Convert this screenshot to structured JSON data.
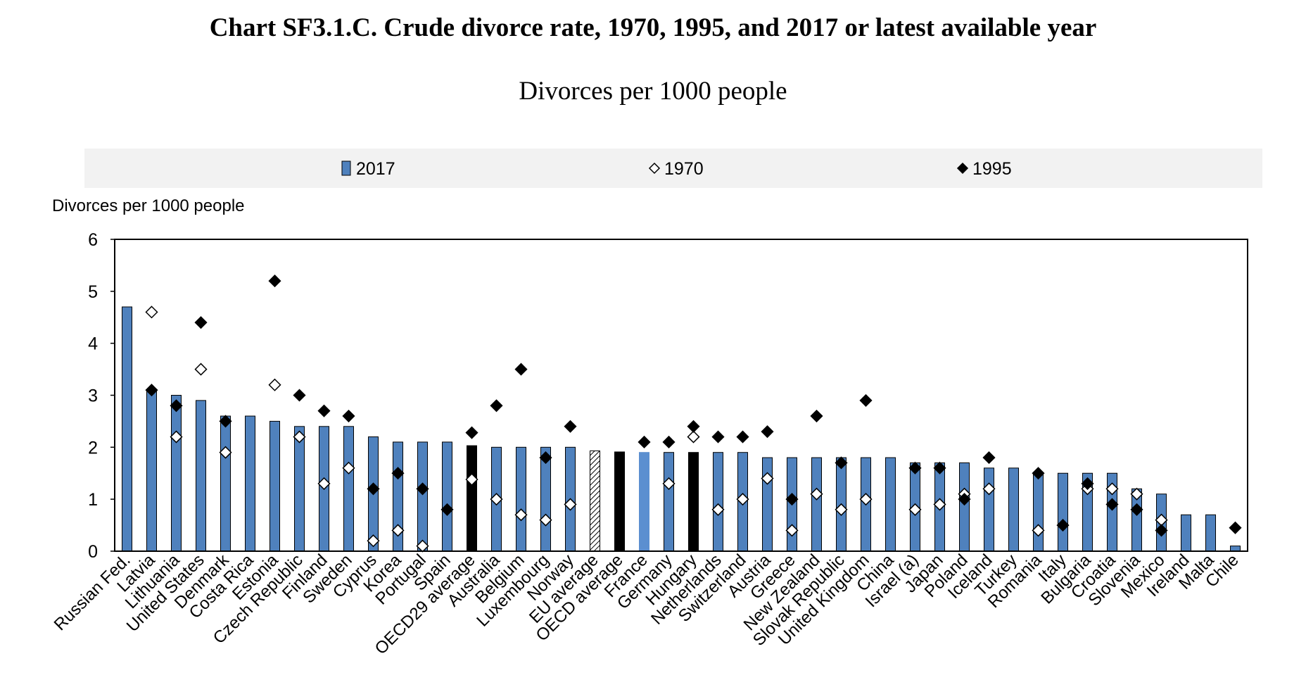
{
  "title": "Chart SF3.1.C. Crude divorce rate, 1970, 1995, and 2017 or latest available year",
  "subtitle": "Divorces per 1000 people",
  "chart_data": {
    "type": "bar",
    "title": "Chart SF3.1.C. Crude divorce rate, 1970, 1995, and 2017 or latest available year",
    "subtitle": "Divorces per 1000 people",
    "ylabel": "Divorces per 1000 people",
    "xlabel": "",
    "ylim": [
      0,
      6
    ],
    "yticks": [
      0,
      1,
      2,
      3,
      4,
      5,
      6
    ],
    "grid": false,
    "legend_position": "top",
    "legend": [
      {
        "name": "2017",
        "marker": "bar"
      },
      {
        "name": "1970",
        "marker": "open-diamond"
      },
      {
        "name": "1995",
        "marker": "filled-diamond"
      }
    ],
    "colors": {
      "bar": "#4f81bd",
      "bar_stroke": "#000000",
      "average_bar": "#000000",
      "highlight_bar": "#5b8fd0",
      "legend_bg": "#f2f2f2"
    },
    "categories": [
      "Russian Fed.",
      "Latvia",
      "Lithuania",
      "United States",
      "Denmark",
      "Costa Rica",
      "Estonia",
      "Czech Republic",
      "Finland",
      "Sweden",
      "Cyprus",
      "Korea",
      "Portugal",
      "Spain",
      "OECD29 average",
      "Australia",
      "Belgium",
      "Luxembourg",
      "Norway",
      "EU average",
      "OECD average",
      "France",
      "Germany",
      "Hungary",
      "Netherlands",
      "Switzerland",
      "Austria",
      "Greece",
      "New Zealand",
      "Slovak Republic",
      "United Kingdom",
      "China",
      "Israel (a)",
      "Japan",
      "Poland",
      "Iceland",
      "Turkey",
      "Romania",
      "Italy",
      "Bulgaria",
      "Croatia",
      "Slovenia",
      "Mexico",
      "Ireland",
      "Malta",
      "Chile"
    ],
    "bar_style": [
      "normal",
      "normal",
      "normal",
      "normal",
      "normal",
      "normal",
      "normal",
      "normal",
      "normal",
      "normal",
      "normal",
      "normal",
      "normal",
      "normal",
      "black",
      "normal",
      "normal",
      "normal",
      "normal",
      "hatched",
      "black",
      "highlight",
      "normal",
      "black",
      "normal",
      "normal",
      "normal",
      "normal",
      "normal",
      "normal",
      "normal",
      "normal",
      "normal",
      "normal",
      "normal",
      "normal",
      "normal",
      "normal",
      "normal",
      "normal",
      "normal",
      "normal",
      "normal",
      "normal",
      "normal",
      "normal"
    ],
    "series": [
      {
        "name": "2017",
        "values": [
          4.7,
          3.1,
          3.0,
          2.9,
          2.6,
          2.6,
          2.5,
          2.4,
          2.4,
          2.4,
          2.2,
          2.1,
          2.1,
          2.1,
          2.03,
          2.0,
          2.0,
          2.0,
          2.0,
          1.93,
          1.91,
          1.9,
          1.9,
          1.9,
          1.9,
          1.9,
          1.8,
          1.8,
          1.8,
          1.8,
          1.8,
          1.8,
          1.7,
          1.7,
          1.7,
          1.6,
          1.6,
          1.5,
          1.5,
          1.5,
          1.5,
          1.2,
          1.1,
          0.7,
          0.7,
          0.1
        ]
      },
      {
        "name": "1970",
        "values": [
          null,
          4.6,
          2.2,
          3.5,
          1.9,
          null,
          3.2,
          2.2,
          1.3,
          1.6,
          0.2,
          0.4,
          0.1,
          null,
          1.38,
          1.0,
          0.7,
          0.6,
          0.9,
          null,
          null,
          null,
          1.3,
          2.2,
          0.8,
          1.0,
          1.4,
          0.4,
          1.1,
          0.8,
          1.0,
          null,
          0.8,
          0.9,
          1.1,
          1.2,
          null,
          0.4,
          null,
          1.2,
          1.2,
          1.1,
          0.6,
          null,
          null,
          null
        ]
      },
      {
        "name": "1995",
        "values": [
          null,
          3.1,
          2.8,
          4.4,
          2.5,
          null,
          5.2,
          3.0,
          2.7,
          2.6,
          1.2,
          1.5,
          1.2,
          0.8,
          2.28,
          2.8,
          3.5,
          1.8,
          2.4,
          null,
          null,
          2.1,
          2.1,
          2.4,
          2.2,
          2.2,
          2.3,
          1.0,
          2.6,
          1.7,
          2.9,
          null,
          1.6,
          1.6,
          1.0,
          1.8,
          null,
          1.5,
          0.5,
          1.3,
          0.9,
          0.8,
          0.4,
          null,
          null,
          0.45
        ]
      }
    ]
  }
}
